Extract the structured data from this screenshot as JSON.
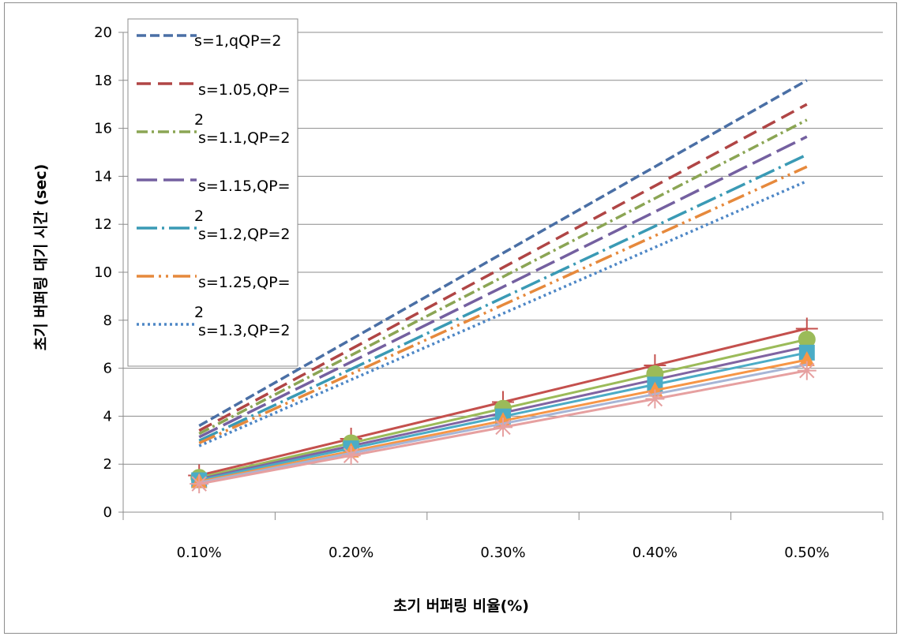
{
  "chart_data": {
    "type": "line",
    "title": "",
    "xlabel": "초기 버퍼링 비율(%)",
    "ylabel": "초기 버퍼링 대기 시간 (sec)",
    "categories": [
      "0.10%",
      "0.20%",
      "0.30%",
      "0.40%",
      "0.50%"
    ],
    "ylim": [
      0,
      20
    ],
    "yticks": [
      0,
      2,
      4,
      6,
      8,
      10,
      12,
      14,
      16,
      18,
      20
    ],
    "grid": "horizontal",
    "legend_position": "top-left",
    "legend_labels": [
      "s=1,qQP=2",
      "s=1.05,QP=",
      "2",
      "s=1.1,QP=2",
      "s=1.15,QP=",
      "2",
      "s=1.2,QP=2",
      "s=1.25,QP=",
      "2",
      "s=1.3,QP=2"
    ],
    "series": [
      {
        "name": "s=1,qQP=2",
        "color": "#4a6fa5",
        "dash": "12,5",
        "values": [
          3.6,
          7.2,
          10.8,
          14.4,
          18.0
        ]
      },
      {
        "name": "s=1.05,QP=2",
        "color": "#b04545",
        "dash": "18,9",
        "values": [
          3.4,
          6.8,
          10.2,
          13.6,
          17.0
        ]
      },
      {
        "name": "s=1.1,QP=2",
        "color": "#8ba554",
        "dash": "14,5,3,5",
        "values": [
          3.27,
          6.54,
          9.81,
          13.08,
          16.35
        ]
      },
      {
        "name": "s=1.15,QP=2",
        "color": "#7460a0",
        "dash": "26,8",
        "values": [
          3.13,
          6.26,
          9.39,
          12.52,
          15.65
        ]
      },
      {
        "name": "s=1.2,QP=2",
        "color": "#3a9ab5",
        "dash": "26,6,3,6",
        "values": [
          2.98,
          5.96,
          8.94,
          11.92,
          14.9
        ]
      },
      {
        "name": "s=1.25,QP=2",
        "color": "#e6893c",
        "dash": "22,6,3,6,3,6",
        "values": [
          2.88,
          5.76,
          8.64,
          11.52,
          14.4
        ]
      },
      {
        "name": "s=1.3,QP=2",
        "color": "#4e87c6",
        "dash": "3,4",
        "values": [
          2.76,
          5.52,
          8.28,
          11.04,
          13.8
        ]
      }
    ],
    "solid_series": [
      {
        "color": "#c4504d",
        "marker": "plus",
        "values": [
          1.53,
          3.06,
          4.59,
          6.12,
          7.65
        ]
      },
      {
        "color": "#9bbb59",
        "marker": "circle",
        "values": [
          1.44,
          2.88,
          4.32,
          5.76,
          7.2
        ]
      },
      {
        "color": "#8064a2",
        "marker": "none",
        "values": [
          1.38,
          2.76,
          4.14,
          5.52,
          6.9
        ]
      },
      {
        "color": "#4bacc6",
        "marker": "square",
        "values": [
          1.33,
          2.66,
          3.99,
          5.32,
          6.65
        ]
      },
      {
        "color": "#f79646",
        "marker": "triangle",
        "values": [
          1.27,
          2.54,
          3.81,
          5.08,
          6.35
        ]
      },
      {
        "color": "#a6b5d6",
        "marker": "none",
        "values": [
          1.23,
          2.46,
          3.69,
          4.92,
          6.15
        ]
      },
      {
        "color": "#e6a0a0",
        "marker": "star",
        "values": [
          1.18,
          2.36,
          3.54,
          4.72,
          5.9
        ]
      }
    ]
  }
}
